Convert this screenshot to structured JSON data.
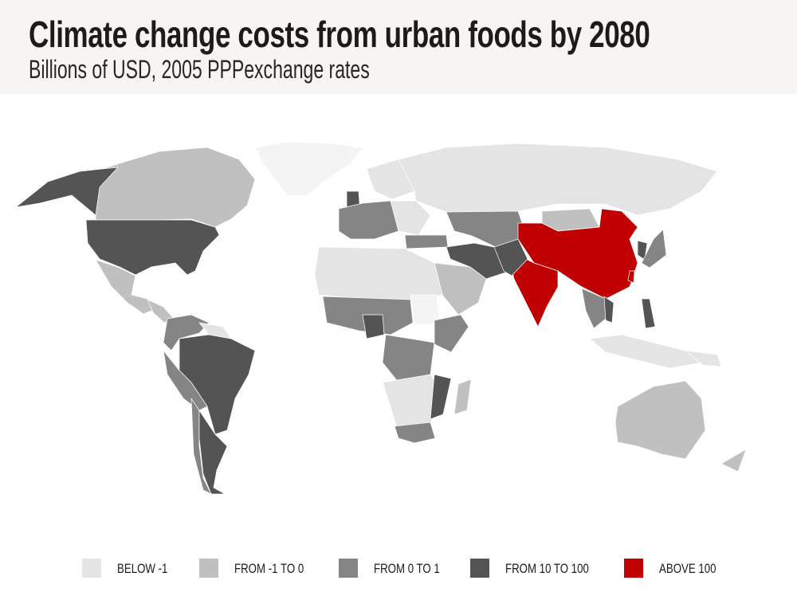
{
  "header": {
    "title": "Climate change costs from urban foods by 2080",
    "subtitle": "Billions of USD, 2005 PPPexchange rates"
  },
  "chart_data": {
    "type": "choropleth",
    "title": "Climate change costs from urban foods by 2080",
    "subtitle": "Billions of USD, 2005 PPPexchange rates",
    "legend_position": "bottom",
    "legend": [
      {
        "key": "below_-1",
        "label": "BELOW -1",
        "color": "#e4e4e4"
      },
      {
        "key": "-1_to_0",
        "label": "FROM -1 TO 0",
        "color": "#c0c0c0"
      },
      {
        "key": "0_to_1",
        "label": "FROM 0 TO 1",
        "color": "#858585"
      },
      {
        "key": "10_to_100",
        "label": "FROM 10 TO 100",
        "color": "#545454"
      },
      {
        "key": "above_100",
        "label": "ABOVE 100",
        "color": "#c00000"
      }
    ],
    "no_data_color": "#f4f4f4",
    "regions": {
      "greenland": "no_data",
      "canada": "-1_to_0",
      "alaska": "10_to_100",
      "usa": "10_to_100",
      "mexico": "-1_to_0",
      "central-america": "-1_to_0",
      "colombia-venezuela": "0_to_1",
      "guianas": "below_-1",
      "brazil": "10_to_100",
      "peru-bolivia": "0_to_1",
      "chile": "0_to_1",
      "argentina": "10_to_100",
      "scandinavia": "below_-1",
      "uk": "10_to_100",
      "western-europe": "0_to_1",
      "eastern-europe": "below_-1",
      "russia": "below_-1",
      "central-asia": "0_to_1",
      "mongolia": "-1_to_0",
      "china": "above_100",
      "taiwan": "above_100",
      "india": "above_100",
      "turkey": "0_to_1",
      "iran": "10_to_100",
      "afghanistan-pakistan": "10_to_100",
      "arabia": "-1_to_0",
      "north-africa": "below_-1",
      "sahel": "0_to_1",
      "sudan": "no_data",
      "nigeria": "10_to_100",
      "ethiopia-east-africa": "0_to_1",
      "central-africa": "0_to_1",
      "southern-africa": "below_-1",
      "mozambique": "10_to_100",
      "south-africa": "0_to_1",
      "madagascar": "-1_to_0",
      "southeast-asia": "0_to_1",
      "vietnam": "10_to_100",
      "philippines": "10_to_100",
      "indonesia": "below_-1",
      "japan": "0_to_1",
      "korea": "10_to_100",
      "australia": "-1_to_0",
      "new-zealand": "-1_to_0",
      "papua": "below_-1"
    }
  }
}
